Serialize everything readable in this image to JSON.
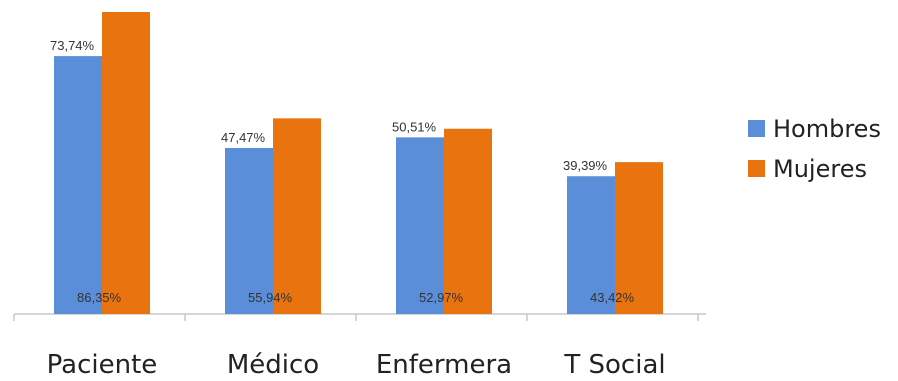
{
  "chart_data": {
    "type": "bar",
    "categories": [
      "Paciente",
      "Médico",
      "Enfermera",
      "T Social"
    ],
    "series": [
      {
        "name": "Hombres",
        "color": "#5B8ED8",
        "values": [
          73.74,
          47.47,
          50.51,
          39.39
        ],
        "labels": [
          "73,74%",
          "47,47%",
          "50,51%",
          "39,39%"
        ]
      },
      {
        "name": "Mujeres",
        "color": "#E9730F",
        "values": [
          86.35,
          55.94,
          52.97,
          43.42
        ],
        "labels": [
          "86,35%",
          "55,94%",
          "52,97%",
          "43,42%"
        ]
      }
    ],
    "ylim": [
      0,
      86.35
    ],
    "grid": false,
    "legend": "right"
  }
}
